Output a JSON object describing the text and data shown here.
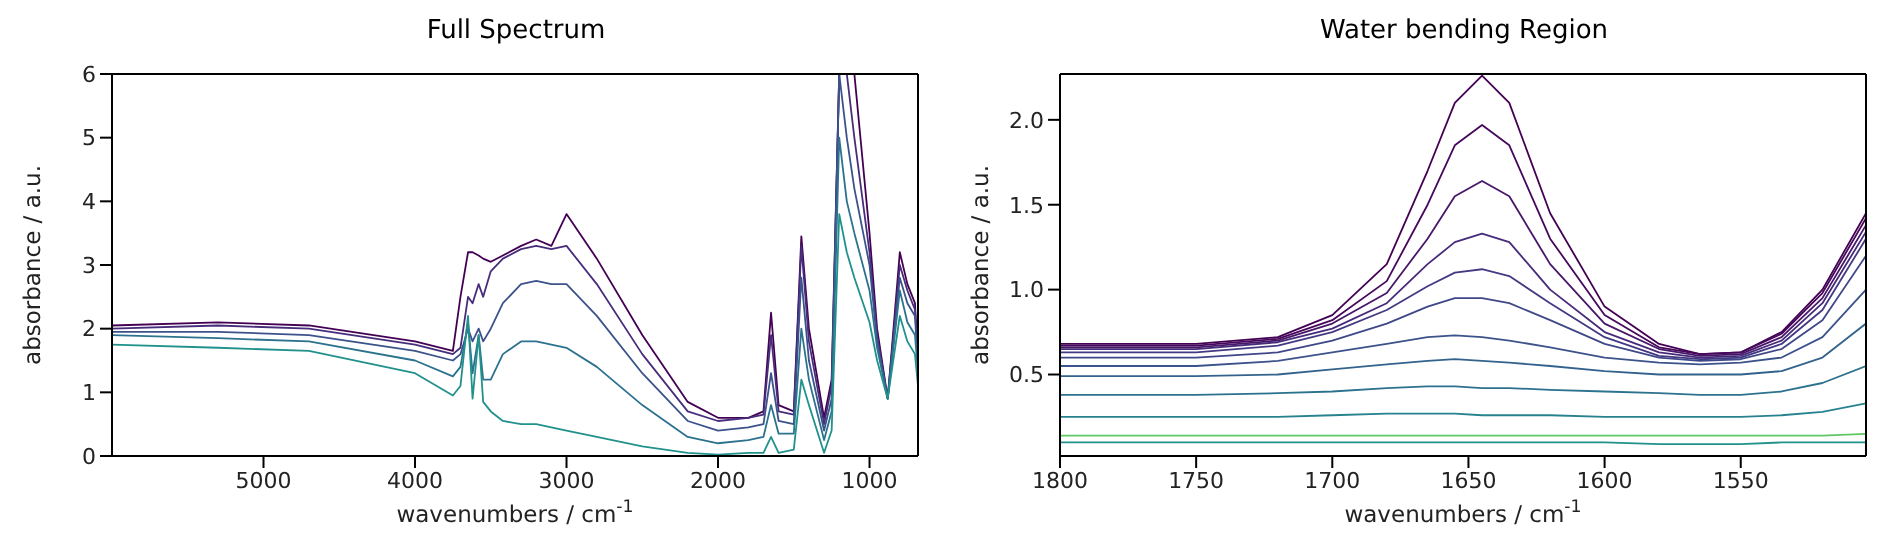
{
  "chart_data": [
    {
      "type": "line",
      "title": "Full Spectrum",
      "xlabel": "wavenumbers / cm$^{-1}$",
      "ylabel": "absorbance / a.u.",
      "x": [
        6000,
        5300,
        4700,
        4000,
        3750,
        3700,
        3650,
        3620,
        3580,
        3550,
        3500,
        3420,
        3300,
        3200,
        3100,
        3000,
        2800,
        2500,
        2200,
        2000,
        1800,
        1700,
        1650,
        1600,
        1500,
        1450,
        1400,
        1300,
        1250,
        1200,
        1150,
        1100,
        1000,
        950,
        880,
        800,
        750,
        700,
        680
      ],
      "xlim": [
        6000,
        680
      ],
      "xticks": [
        5000,
        4000,
        3000,
        2000,
        1000
      ],
      "ylim": [
        0,
        6
      ],
      "yticks": [
        0,
        1,
        2,
        3,
        4,
        5,
        6
      ],
      "grid": false,
      "legend": false,
      "marker": "none",
      "line_style": "solid",
      "series": [
        {
          "color": "#440154",
          "values": [
            2.05,
            2.1,
            2.05,
            1.8,
            1.65,
            2.5,
            3.2,
            3.2,
            3.15,
            3.1,
            3.05,
            3.15,
            3.3,
            3.4,
            3.3,
            3.8,
            3.1,
            1.9,
            0.85,
            0.6,
            0.6,
            0.7,
            2.25,
            0.8,
            0.7,
            3.45,
            2.0,
            0.6,
            1.2,
            6,
            6,
            6,
            3.5,
            2.0,
            0.9,
            3.2,
            2.7,
            2.4,
            1.5
          ]
        },
        {
          "color": "#472d7b",
          "values": [
            2.0,
            2.05,
            2.0,
            1.75,
            1.6,
            1.7,
            2.5,
            2.4,
            2.7,
            2.5,
            2.9,
            3.1,
            3.25,
            3.3,
            3.25,
            3.3,
            2.7,
            1.6,
            0.7,
            0.55,
            0.6,
            0.65,
            1.9,
            0.7,
            0.65,
            3.3,
            1.8,
            0.5,
            1.1,
            6,
            6,
            5,
            3.2,
            1.9,
            0.9,
            3.0,
            2.6,
            2.3,
            1.5
          ]
        },
        {
          "color": "#3b528b",
          "values": [
            1.95,
            1.95,
            1.9,
            1.65,
            1.5,
            1.6,
            2.0,
            1.8,
            2.0,
            1.8,
            2.0,
            2.4,
            2.7,
            2.75,
            2.7,
            2.7,
            2.2,
            1.3,
            0.55,
            0.4,
            0.45,
            0.5,
            1.3,
            0.55,
            0.5,
            2.8,
            1.5,
            0.4,
            0.9,
            6,
            5,
            4.2,
            3.0,
            1.8,
            0.9,
            2.8,
            2.4,
            2.2,
            1.4
          ]
        },
        {
          "color": "#2c728e",
          "values": [
            1.9,
            1.85,
            1.8,
            1.5,
            1.25,
            1.4,
            2.1,
            1.3,
            1.9,
            1.2,
            1.2,
            1.6,
            1.8,
            1.8,
            1.75,
            1.7,
            1.4,
            0.8,
            0.3,
            0.2,
            0.25,
            0.3,
            0.8,
            0.35,
            0.35,
            2.0,
            1.2,
            0.25,
            0.7,
            5,
            4.0,
            3.5,
            2.6,
            1.7,
            0.9,
            2.6,
            2.1,
            1.9,
            1.3
          ]
        },
        {
          "color": "#21918c",
          "values": [
            1.75,
            1.7,
            1.65,
            1.3,
            0.95,
            1.1,
            2.2,
            0.9,
            1.9,
            0.85,
            0.7,
            0.55,
            0.5,
            0.5,
            0.45,
            0.4,
            0.3,
            0.15,
            0.05,
            0.02,
            0.05,
            0.05,
            0.3,
            0.05,
            0.1,
            1.2,
            0.8,
            0.05,
            0.4,
            3.8,
            3.2,
            2.8,
            2.1,
            1.5,
            0.9,
            2.2,
            1.8,
            1.6,
            1.1
          ]
        }
      ]
    },
    {
      "type": "line",
      "title": "Water bending Region",
      "xlabel": "wavenumbers / cm$^{-1}$",
      "ylabel": "absorbance / a.u.",
      "x": [
        1800,
        1750,
        1720,
        1700,
        1680,
        1665,
        1655,
        1645,
        1635,
        1620,
        1600,
        1580,
        1565,
        1550,
        1535,
        1520,
        1504
      ],
      "xlim": [
        1800,
        1504
      ],
      "xticks": [
        1800,
        1750,
        1700,
        1650,
        1600,
        1550
      ],
      "ylim": [
        0.02,
        2.27
      ],
      "yticks": [
        {
          "value": 0.5,
          "label": "0.5"
        },
        {
          "value": 1,
          "label": "1.0"
        },
        {
          "value": 1.5,
          "label": "1.5"
        },
        {
          "value": 2,
          "label": "2.0"
        }
      ],
      "grid": false,
      "legend": false,
      "marker": "none",
      "line_style": "solid",
      "series": [
        {
          "color": "#440154",
          "values": [
            0.68,
            0.68,
            0.72,
            0.85,
            1.15,
            1.7,
            2.1,
            2.26,
            2.1,
            1.45,
            0.9,
            0.68,
            0.62,
            0.63,
            0.75,
            1.0,
            1.45
          ]
        },
        {
          "color": "#46085c",
          "values": [
            0.67,
            0.67,
            0.71,
            0.82,
            1.05,
            1.5,
            1.85,
            1.97,
            1.85,
            1.3,
            0.85,
            0.66,
            0.62,
            0.63,
            0.74,
            0.98,
            1.42
          ]
        },
        {
          "color": "#481769",
          "values": [
            0.66,
            0.66,
            0.7,
            0.8,
            0.98,
            1.3,
            1.55,
            1.64,
            1.55,
            1.15,
            0.8,
            0.65,
            0.61,
            0.62,
            0.72,
            0.95,
            1.38
          ]
        },
        {
          "color": "#472a7a",
          "values": [
            0.65,
            0.65,
            0.69,
            0.77,
            0.92,
            1.15,
            1.28,
            1.33,
            1.28,
            1.0,
            0.75,
            0.63,
            0.6,
            0.61,
            0.7,
            0.92,
            1.34
          ]
        },
        {
          "color": "#443983",
          "values": [
            0.63,
            0.63,
            0.67,
            0.75,
            0.88,
            1.02,
            1.1,
            1.12,
            1.08,
            0.92,
            0.72,
            0.61,
            0.59,
            0.6,
            0.68,
            0.88,
            1.3
          ]
        },
        {
          "color": "#3f4788",
          "values": [
            0.6,
            0.6,
            0.63,
            0.7,
            0.8,
            0.9,
            0.95,
            0.95,
            0.92,
            0.82,
            0.68,
            0.6,
            0.58,
            0.59,
            0.65,
            0.82,
            1.2
          ]
        },
        {
          "color": "#3b528b",
          "values": [
            0.55,
            0.55,
            0.58,
            0.63,
            0.68,
            0.72,
            0.73,
            0.72,
            0.7,
            0.66,
            0.6,
            0.57,
            0.56,
            0.57,
            0.6,
            0.72,
            1.0
          ]
        },
        {
          "color": "#33638d",
          "values": [
            0.49,
            0.49,
            0.5,
            0.53,
            0.56,
            0.58,
            0.59,
            0.58,
            0.57,
            0.55,
            0.52,
            0.5,
            0.5,
            0.5,
            0.52,
            0.6,
            0.8
          ]
        },
        {
          "color": "#2c728e",
          "values": [
            0.38,
            0.38,
            0.39,
            0.4,
            0.42,
            0.43,
            0.43,
            0.42,
            0.42,
            0.41,
            0.4,
            0.39,
            0.38,
            0.38,
            0.4,
            0.45,
            0.55
          ]
        },
        {
          "color": "#26828e",
          "values": [
            0.25,
            0.25,
            0.25,
            0.26,
            0.27,
            0.27,
            0.27,
            0.26,
            0.26,
            0.26,
            0.25,
            0.25,
            0.25,
            0.25,
            0.26,
            0.28,
            0.33
          ]
        },
        {
          "color": "#5ec962",
          "values": [
            0.14,
            0.14,
            0.14,
            0.14,
            0.14,
            0.14,
            0.14,
            0.14,
            0.14,
            0.14,
            0.14,
            0.14,
            0.14,
            0.14,
            0.14,
            0.14,
            0.15
          ]
        },
        {
          "color": "#21918c",
          "values": [
            0.1,
            0.1,
            0.1,
            0.1,
            0.1,
            0.1,
            0.1,
            0.1,
            0.1,
            0.1,
            0.1,
            0.09,
            0.09,
            0.09,
            0.1,
            0.1,
            0.1
          ]
        }
      ]
    }
  ]
}
